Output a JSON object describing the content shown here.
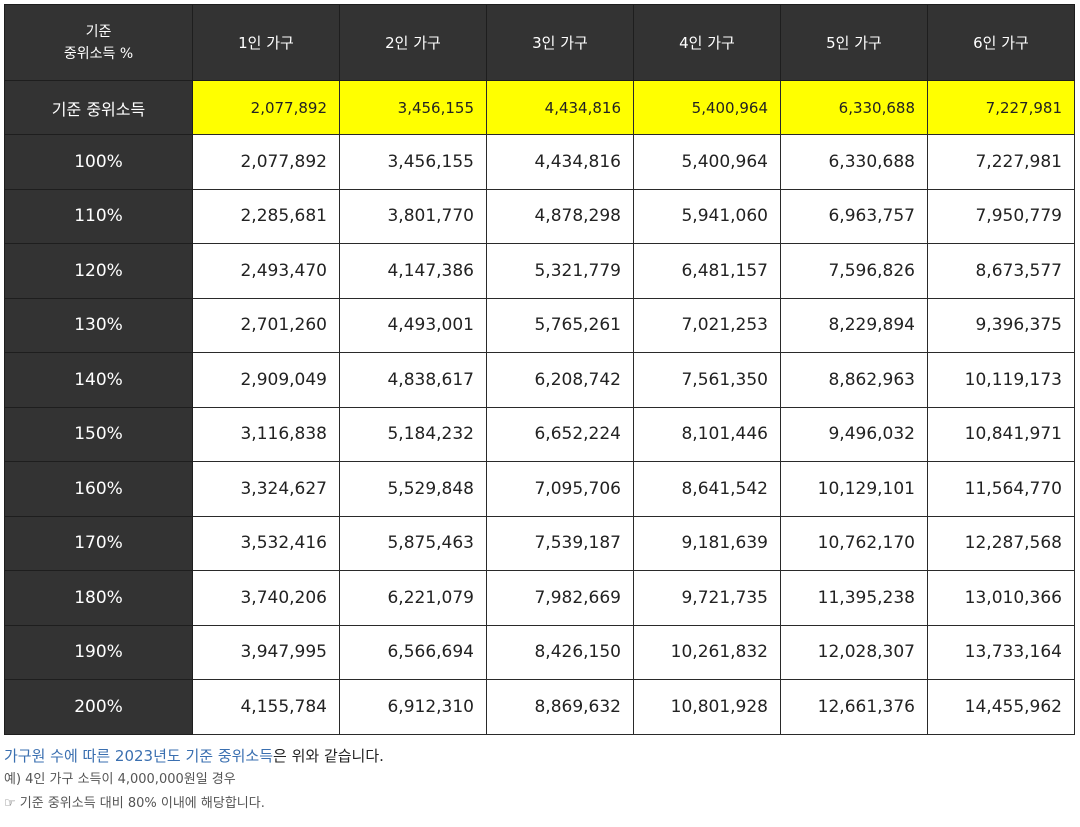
{
  "table": {
    "corner_line1": "기준",
    "corner_line2": "중위소득 %",
    "columns": [
      "1인 가구",
      "2인 가구",
      "3인 가구",
      "4인 가구",
      "5인 가구",
      "6인 가구"
    ],
    "base_row": {
      "label": "기준 중위소득",
      "values": [
        "2,077,892",
        "3,456,155",
        "4,434,816",
        "5,400,964",
        "6,330,688",
        "7,227,981"
      ],
      "highlight_color": "#ffff00"
    },
    "rows": [
      {
        "label": "100%",
        "values": [
          "2,077,892",
          "3,456,155",
          "4,434,816",
          "5,400,964",
          "6,330,688",
          "7,227,981"
        ]
      },
      {
        "label": "110%",
        "values": [
          "2,285,681",
          "3,801,770",
          "4,878,298",
          "5,941,060",
          "6,963,757",
          "7,950,779"
        ]
      },
      {
        "label": "120%",
        "values": [
          "2,493,470",
          "4,147,386",
          "5,321,779",
          "6,481,157",
          "7,596,826",
          "8,673,577"
        ]
      },
      {
        "label": "130%",
        "values": [
          "2,701,260",
          "4,493,001",
          "5,765,261",
          "7,021,253",
          "8,229,894",
          "9,396,375"
        ]
      },
      {
        "label": "140%",
        "values": [
          "2,909,049",
          "4,838,617",
          "6,208,742",
          "7,561,350",
          "8,862,963",
          "10,119,173"
        ]
      },
      {
        "label": "150%",
        "values": [
          "3,116,838",
          "5,184,232",
          "6,652,224",
          "8,101,446",
          "9,496,032",
          "10,841,971"
        ]
      },
      {
        "label": "160%",
        "values": [
          "3,324,627",
          "5,529,848",
          "7,095,706",
          "8,641,542",
          "10,129,101",
          "11,564,770"
        ]
      },
      {
        "label": "170%",
        "values": [
          "3,532,416",
          "5,875,463",
          "7,539,187",
          "9,181,639",
          "10,762,170",
          "12,287,568"
        ]
      },
      {
        "label": "180%",
        "values": [
          "3,740,206",
          "6,221,079",
          "7,982,669",
          "9,721,735",
          "11,395,238",
          "13,010,366"
        ]
      },
      {
        "label": "190%",
        "values": [
          "3,947,995",
          "6,566,694",
          "8,426,150",
          "10,261,832",
          "12,028,307",
          "13,733,164"
        ]
      },
      {
        "label": "200%",
        "values": [
          "4,155,784",
          "6,912,310",
          "8,869,632",
          "10,801,928",
          "12,661,376",
          "14,455,962"
        ]
      }
    ],
    "header_color": "#333333"
  },
  "notes": {
    "main_link": "가구원 수에 따른 2023년도 기준 중위소득",
    "main_rest": "은 위와 같습니다.",
    "link_color": "#3a6fb0",
    "example": "예) 4인 가구 소득이 4,000,000원일 경우",
    "result": "☞ 기준 중위소득 대비 80% 이내에 해당합니다."
  }
}
